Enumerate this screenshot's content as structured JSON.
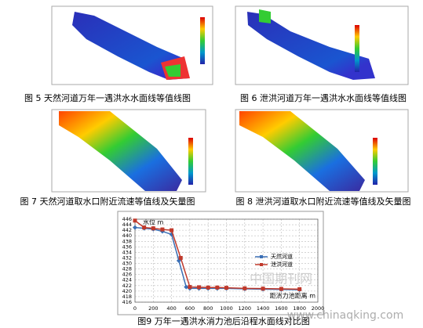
{
  "figures": [
    {
      "caption": "图 5  天然河道万年一遇洪水水面线等值线图"
    },
    {
      "caption": "图 6  泄洪河道万年一遇洪水水面线等值线图"
    },
    {
      "caption": "图 7  天然河道取水口附近流速等值线及矢量图"
    },
    {
      "caption": "图 8  泄洪河道取水口附近流速等值线及矢量图"
    }
  ],
  "chart_data": {
    "type": "line",
    "title": "图9  万年一遇洪水消力池后沿程水面线对比图",
    "y_label": "水位 m",
    "x_label": "距消力池距离 m",
    "xlim": [
      0,
      2000
    ],
    "xticks": [
      0,
      200,
      400,
      600,
      800,
      1000,
      1200,
      1400,
      1600,
      1800,
      2000
    ],
    "ylim": [
      416,
      446
    ],
    "yticks": [
      416,
      418,
      420,
      422,
      424,
      426,
      428,
      430,
      432,
      434,
      436,
      438,
      440,
      442,
      444,
      446
    ],
    "grid": true,
    "legend": "right",
    "series": [
      {
        "name": "天然河道",
        "color": "#3a6fb5",
        "x": [
          0,
          100,
          200,
          300,
          400,
          480,
          560,
          600,
          700,
          800,
          900,
          1000,
          1200,
          1400,
          1600,
          1800
        ],
        "values": [
          443,
          442.7,
          442.4,
          441.6,
          440.5,
          431,
          421.5,
          421,
          421,
          421,
          421,
          421,
          420.8,
          420.7,
          420.6,
          420.5
        ]
      },
      {
        "name": "泄洪河道",
        "color": "#c0392b",
        "x": [
          0,
          100,
          200,
          300,
          400,
          500,
          600,
          700,
          800,
          900,
          1000,
          1200,
          1400,
          1600,
          1800
        ],
        "values": [
          445.5,
          443,
          442.7,
          442.3,
          442,
          432,
          421.5,
          421.4,
          421.3,
          421.3,
          421.2,
          421,
          420.9,
          420.8,
          420.7
        ]
      }
    ],
    "watermark": [
      "中国期刊网",
      "www.chinaqking.com"
    ]
  }
}
